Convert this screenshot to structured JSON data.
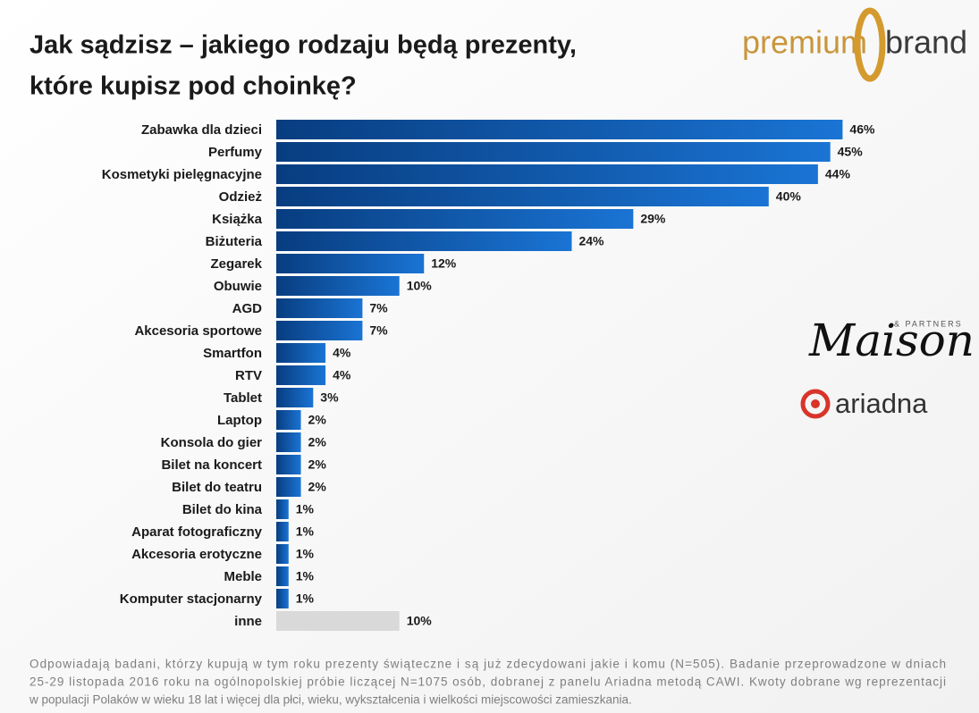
{
  "chart_data": {
    "type": "bar",
    "orientation": "horizontal",
    "title_lines": [
      "Jak sądzisz – jakiego rodzaju będą prezenty,",
      "które kupisz pod choinkę?"
    ],
    "categories": [
      "Zabawka dla dzieci",
      "Perfumy",
      "Kosmetyki pielęgnacyjne",
      "Odzież",
      "Książka",
      "Biżuteria",
      "Zegarek",
      "Obuwie",
      "AGD",
      "Akcesoria sportowe",
      "Smartfon",
      "RTV",
      "Tablet",
      "Laptop",
      "Konsola do gier",
      "Bilet na koncert",
      "Bilet do teatru",
      "Bilet do kina",
      "Aparat fotograficzny",
      "Akcesoria erotyczne",
      "Meble",
      "Komputer stacjonarny",
      "inne"
    ],
    "values": [
      46,
      45,
      44,
      40,
      29,
      24,
      12,
      10,
      7,
      7,
      4,
      4,
      3,
      2,
      2,
      2,
      2,
      1,
      1,
      1,
      1,
      1,
      10
    ],
    "value_labels": [
      "46%",
      "45%",
      "44%",
      "40%",
      "29%",
      "24%",
      "12%",
      "10%",
      "7%",
      "7%",
      "4%",
      "4%",
      "3%",
      "2%",
      "2%",
      "2%",
      "2%",
      "1%",
      "1%",
      "1%",
      "1%",
      "1%",
      "10%"
    ],
    "colors": [
      "#0d5ab4",
      "#0d5ab4",
      "#0d5ab4",
      "#0d5ab4",
      "#0d5ab4",
      "#0d5ab4",
      "#0d5ab4",
      "#0d5ab4",
      "#0d5ab4",
      "#0d5ab4",
      "#0d5ab4",
      "#0d5ab4",
      "#0d5ab4",
      "#0d5ab4",
      "#0d5ab4",
      "#0d5ab4",
      "#0d5ab4",
      "#0d5ab4",
      "#0d5ab4",
      "#0d5ab4",
      "#0d5ab4",
      "#0d5ab4",
      "#d9d9d9"
    ],
    "footnote_lines": [
      "Odpowiadają badani, którzy kupują w tym roku prezenty świąteczne i są już zdecydowani jakie i komu (N=505). Badanie przeprowadzone w dniach",
      "25-29 listopada 2016 roku na ogólnopolskiej próbie liczącej N=1075 osób, dobranej z panelu Ariadna metodą CAWI. Kwoty dobrane wg reprezentacji",
      "w populacji Polaków w wieku 18 lat i więcej dla płci, wieku, wykształcenia i wielkości miejscowości zamieszkania."
    ]
  },
  "logos": {
    "premium": "premium",
    "brand": "brand",
    "maison": "Maison",
    "partners": "& PARTNERS",
    "ariadna": "ariadna"
  }
}
